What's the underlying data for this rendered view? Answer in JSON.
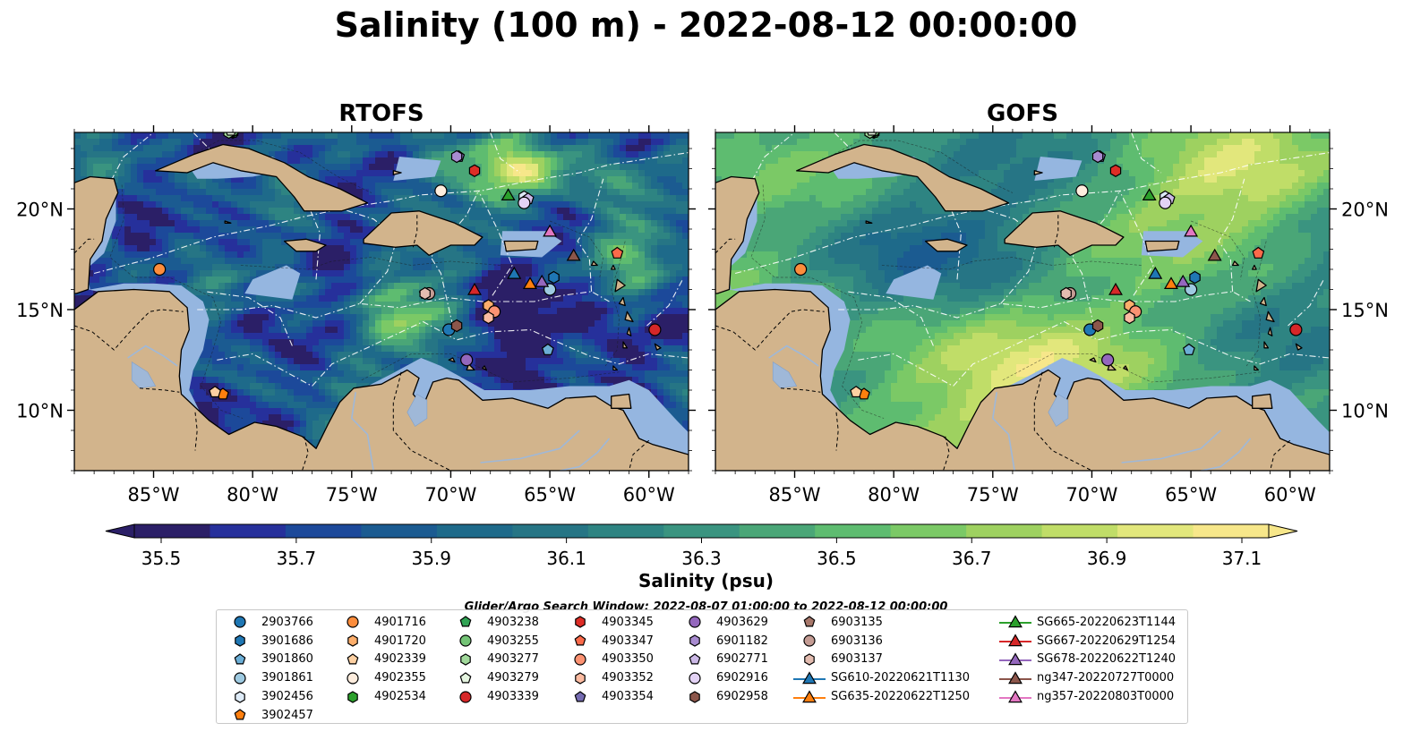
{
  "title": "Salinity (100 m) - 2022-08-12 00:00:00",
  "panels": [
    {
      "title": "RTOFS",
      "model": "rtofs"
    },
    {
      "title": "GOFS",
      "model": "gofs"
    }
  ],
  "lon_ticks": [
    "85°W",
    "80°W",
    "75°W",
    "70°W",
    "65°W",
    "60°W"
  ],
  "lat_ticks": [
    "20°N",
    "15°N",
    "10°N"
  ],
  "colorbar": {
    "label": "Salinity (psu)",
    "vmin": 35.5,
    "vmax": 37.1,
    "tick_labels": [
      "35.5",
      "35.7",
      "35.9",
      "36.1",
      "36.3",
      "36.5",
      "36.7",
      "36.9",
      "37.1"
    ],
    "colors": [
      "#2b1f67",
      "#26309b",
      "#1c499a",
      "#1b5b91",
      "#1e6a8a",
      "#267585",
      "#2e8482",
      "#3a9480",
      "#4aa677",
      "#5ebc70",
      "#7bc966",
      "#9ed160",
      "#c0dd68",
      "#e2e77c",
      "#f7e78a"
    ]
  },
  "search_window": "Glider/Argo Search Window: 2022-08-07 01:00:00 to 2022-08-12 00:00:00",
  "colors": {
    "land": "#d2b48c",
    "shelf": "#95b6e0",
    "coast": "#000000"
  },
  "legend": {
    "columns": [
      [
        {
          "label": "2903766",
          "marker": "circle",
          "color": "#1f77b4"
        },
        {
          "label": "3901686",
          "marker": "hexagon",
          "color": "#1f77b4"
        },
        {
          "label": "3901860",
          "marker": "pentagon",
          "color": "#6baed6"
        },
        {
          "label": "3901861",
          "marker": "circle",
          "color": "#9ecae1"
        },
        {
          "label": "3902456",
          "marker": "hexagon",
          "color": "#deebf7"
        },
        {
          "label": "3902457",
          "marker": "pentagon",
          "color": "#ff7f0e"
        }
      ],
      [
        {
          "label": "4901716",
          "marker": "circle",
          "color": "#fd8d3c"
        },
        {
          "label": "4901720",
          "marker": "hexagon",
          "color": "#fdae6b"
        },
        {
          "label": "4902339",
          "marker": "pentagon",
          "color": "#fdd0a2"
        },
        {
          "label": "4902355",
          "marker": "circle",
          "color": "#feedde"
        },
        {
          "label": "4902534",
          "marker": "hexagon",
          "color": "#2ca02c"
        }
      ],
      [
        {
          "label": "4903238",
          "marker": "pentagon",
          "color": "#31a354"
        },
        {
          "label": "4903255",
          "marker": "circle",
          "color": "#74c476"
        },
        {
          "label": "4903277",
          "marker": "hexagon",
          "color": "#a1d99b"
        },
        {
          "label": "4903279",
          "marker": "pentagon",
          "color": "#e5f5e0"
        },
        {
          "label": "4903339",
          "marker": "circle",
          "color": "#d62728"
        }
      ],
      [
        {
          "label": "4903345",
          "marker": "hexagon",
          "color": "#de2d26"
        },
        {
          "label": "4903347",
          "marker": "pentagon",
          "color": "#fb6a4a"
        },
        {
          "label": "4903350",
          "marker": "circle",
          "color": "#fc9272"
        },
        {
          "label": "4903352",
          "marker": "hexagon",
          "color": "#fcbba1"
        },
        {
          "label": "4903354",
          "marker": "pentagon",
          "color": "#756bb1"
        }
      ],
      [
        {
          "label": "4903629",
          "marker": "circle",
          "color": "#9467bd"
        },
        {
          "label": "6901182",
          "marker": "hexagon",
          "color": "#a88bd0"
        },
        {
          "label": "6902771",
          "marker": "pentagon",
          "color": "#cbb8e6"
        },
        {
          "label": "6902916",
          "marker": "circle",
          "color": "#e3d2f5"
        },
        {
          "label": "6902958",
          "marker": "hexagon",
          "color": "#8c564b"
        }
      ],
      [
        {
          "label": "6903135",
          "marker": "pentagon",
          "color": "#a8786b"
        },
        {
          "label": "6903136",
          "marker": "circle",
          "color": "#c49c94"
        },
        {
          "label": "6903137",
          "marker": "hexagon",
          "color": "#e3bcb0"
        },
        {
          "label": "SG610-20220621T1130",
          "marker": "triangle",
          "color": "#1f77b4"
        },
        {
          "label": "SG635-20220622T1250",
          "marker": "triangle",
          "color": "#ff7f0e"
        }
      ],
      [
        {
          "label": "SG665-20220623T1144",
          "marker": "triangle",
          "color": "#2ca02c"
        },
        {
          "label": "SG667-20220629T1254",
          "marker": "triangle",
          "color": "#d62728"
        },
        {
          "label": "SG678-20220622T1240",
          "marker": "triangle",
          "color": "#9467bd"
        },
        {
          "label": "ng347-20220727T0000",
          "marker": "triangle",
          "color": "#8c564b"
        },
        {
          "label": "ng357-20220803T0000",
          "marker": "triangle",
          "color": "#e377c2"
        }
      ]
    ]
  },
  "observations": [
    {
      "id": "2903766",
      "lon": -70.1,
      "lat": 14.0,
      "marker": "circle",
      "color": "#1f77b4"
    },
    {
      "id": "3901686",
      "lon": -64.8,
      "lat": 16.6,
      "marker": "hexagon",
      "color": "#1f77b4"
    },
    {
      "id": "3901860",
      "lon": -65.1,
      "lat": 13.0,
      "marker": "pentagon",
      "color": "#6baed6"
    },
    {
      "id": "3901861",
      "lon": -65.0,
      "lat": 16.0,
      "marker": "circle",
      "color": "#9ecae1"
    },
    {
      "id": "3902456",
      "lon": -66.3,
      "lat": 20.6,
      "marker": "hexagon",
      "color": "#deebf7"
    },
    {
      "id": "3902457",
      "lon": -81.5,
      "lat": 10.8,
      "marker": "pentagon",
      "color": "#ff7f0e"
    },
    {
      "id": "4901716",
      "lon": -84.7,
      "lat": 17.0,
      "marker": "circle",
      "color": "#fd8d3c"
    },
    {
      "id": "4901720",
      "lon": -68.1,
      "lat": 15.2,
      "marker": "hexagon",
      "color": "#fdae6b"
    },
    {
      "id": "4902339",
      "lon": -81.9,
      "lat": 10.9,
      "marker": "pentagon",
      "color": "#fdd0a2"
    },
    {
      "id": "4902355",
      "lon": -70.5,
      "lat": 20.9,
      "marker": "circle",
      "color": "#feedde"
    },
    {
      "id": "4902534",
      "lon": -81.0,
      "lat": 23.8,
      "marker": "hexagon",
      "color": "#2ca02c"
    },
    {
      "id": "4903238",
      "lon": -81.0,
      "lat": 23.8,
      "marker": "pentagon",
      "color": "#31a354"
    },
    {
      "id": "4903255",
      "lon": -81.0,
      "lat": 23.9,
      "marker": "circle",
      "color": "#74c476"
    },
    {
      "id": "4903277",
      "lon": -81.2,
      "lat": 23.8,
      "marker": "hexagon",
      "color": "#a1d99b"
    },
    {
      "id": "4903279",
      "lon": -81.1,
      "lat": 23.9,
      "marker": "pentagon",
      "color": "#e5f5e0"
    },
    {
      "id": "4903339",
      "lon": -59.7,
      "lat": 14.0,
      "marker": "circle",
      "color": "#d62728"
    },
    {
      "id": "4903345",
      "lon": -68.8,
      "lat": 21.9,
      "marker": "hexagon",
      "color": "#de2d26"
    },
    {
      "id": "4903347",
      "lon": -61.6,
      "lat": 17.8,
      "marker": "pentagon",
      "color": "#fb6a4a"
    },
    {
      "id": "4903350",
      "lon": -67.8,
      "lat": 14.9,
      "marker": "circle",
      "color": "#fc9272"
    },
    {
      "id": "4903352",
      "lon": -68.1,
      "lat": 14.6,
      "marker": "hexagon",
      "color": "#fcbba1"
    },
    {
      "id": "4903354",
      "lon": -69.6,
      "lat": 22.6,
      "marker": "pentagon",
      "color": "#756bb1"
    },
    {
      "id": "4903629",
      "lon": -69.2,
      "lat": 12.5,
      "marker": "circle",
      "color": "#9467bd"
    },
    {
      "id": "6901182",
      "lon": -69.7,
      "lat": 22.6,
      "marker": "hexagon",
      "color": "#a88bd0"
    },
    {
      "id": "6902771",
      "lon": -66.1,
      "lat": 20.5,
      "marker": "pentagon",
      "color": "#cbb8e6"
    },
    {
      "id": "6902916",
      "lon": -66.3,
      "lat": 20.3,
      "marker": "circle",
      "color": "#e3d2f5"
    },
    {
      "id": "6902958",
      "lon": -69.7,
      "lat": 14.2,
      "marker": "hexagon",
      "color": "#8c564b"
    },
    {
      "id": "6903135",
      "lon": -71.3,
      "lat": 15.8,
      "marker": "pentagon",
      "color": "#a8786b"
    },
    {
      "id": "6903136",
      "lon": -71.1,
      "lat": 15.8,
      "marker": "circle",
      "color": "#c49c94"
    },
    {
      "id": "6903137",
      "lon": -71.3,
      "lat": 15.8,
      "marker": "hexagon",
      "color": "#e3bcb0"
    },
    {
      "id": "SG610-20220621T1130",
      "lon": -66.8,
      "lat": 16.8,
      "marker": "triangle",
      "color": "#1f77b4"
    },
    {
      "id": "SG635-20220622T1250",
      "lon": -66.0,
      "lat": 16.3,
      "marker": "triangle",
      "color": "#ff7f0e"
    },
    {
      "id": "SG665-20220623T1144",
      "lon": -67.1,
      "lat": 20.7,
      "marker": "triangle",
      "color": "#2ca02c"
    },
    {
      "id": "SG667-20220629T1254",
      "lon": -68.8,
      "lat": 16.0,
      "marker": "triangle",
      "color": "#d62728"
    },
    {
      "id": "SG678-20220622T1240",
      "lon": -65.4,
      "lat": 16.4,
      "marker": "triangle",
      "color": "#9467bd"
    },
    {
      "id": "ng347-20220727T0000",
      "lon": -63.8,
      "lat": 17.7,
      "marker": "triangle",
      "color": "#8c564b"
    },
    {
      "id": "ng357-20220803T0000",
      "lon": -65.0,
      "lat": 18.9,
      "marker": "triangle",
      "color": "#e377c2"
    }
  ]
}
